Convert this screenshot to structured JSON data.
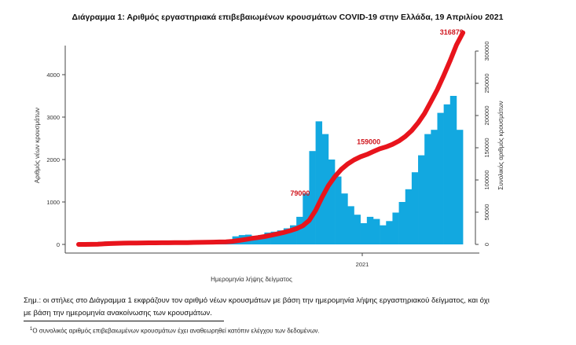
{
  "chart_data": {
    "type": "bar",
    "title": "Διάγραμμα 1: Αριθμός εργαστηριακά επιβεβαιωμένων κρουσμάτων COVID-19 στην Ελλάδα, 19 Απριλίου 2021",
    "xlabel": "Ημερομηνία λήψης δείγματος",
    "ylabel": "Αριθμός νέων κρουσμάτων",
    "y2label": "Συνολικός αριθμός κρουσμάτων",
    "ylim": [
      0,
      4500
    ],
    "y2lim": [
      0,
      320000
    ],
    "yticks": [
      "0",
      "1000",
      "2000",
      "3000",
      "4000"
    ],
    "y2ticks": [
      "0",
      "50000",
      "100000",
      "150000",
      "200000",
      "250000",
      "300000"
    ],
    "xtick_labels": [
      {
        "date": "2021-01-01",
        "label": "2021"
      }
    ],
    "grid": false,
    "colors": {
      "bars": "#12a8e0",
      "cumulative_line": "#e8141c",
      "annotation": "#d0161e"
    },
    "series": [
      {
        "kind": "bar",
        "x": [
          "2020-02-26",
          "2020-03-04",
          "2020-03-11",
          "2020-03-18",
          "2020-03-25",
          "2020-04-01",
          "2020-04-08",
          "2020-04-15",
          "2020-04-22",
          "2020-04-29",
          "2020-05-06",
          "2020-05-13",
          "2020-05-20",
          "2020-05-27",
          "2020-06-03",
          "2020-06-10",
          "2020-06-17",
          "2020-06-24",
          "2020-07-01",
          "2020-07-08",
          "2020-07-15",
          "2020-07-22",
          "2020-07-29",
          "2020-08-05",
          "2020-08-12",
          "2020-08-19",
          "2020-08-26",
          "2020-09-02",
          "2020-09-09",
          "2020-09-16",
          "2020-09-23",
          "2020-09-30",
          "2020-10-07",
          "2020-10-14",
          "2020-10-21",
          "2020-10-28",
          "2020-11-04",
          "2020-11-11",
          "2020-11-18",
          "2020-11-25",
          "2020-12-02",
          "2020-12-09",
          "2020-12-16",
          "2020-12-23",
          "2020-12-30",
          "2021-01-06",
          "2021-01-13",
          "2021-01-20",
          "2021-01-27",
          "2021-02-03",
          "2021-02-10",
          "2021-02-17",
          "2021-02-24",
          "2021-03-03",
          "2021-03-10",
          "2021-03-17",
          "2021-03-24",
          "2021-03-31",
          "2021-04-07",
          "2021-04-14"
        ],
        "values": [
          5,
          15,
          40,
          60,
          70,
          50,
          40,
          25,
          15,
          10,
          10,
          10,
          10,
          10,
          10,
          12,
          15,
          20,
          20,
          25,
          30,
          35,
          40,
          100,
          190,
          220,
          230,
          200,
          220,
          280,
          300,
          330,
          380,
          450,
          650,
          1200,
          2200,
          2900,
          2600,
          2000,
          1600,
          1200,
          900,
          700,
          500,
          650,
          600,
          450,
          550,
          750,
          1000,
          1300,
          1700,
          2100,
          2600,
          2700,
          3100,
          3300,
          3500,
          2700
        ]
      },
      {
        "kind": "line",
        "cumulative": true
      }
    ],
    "annotations": [
      {
        "date": "2020-11-10",
        "value": 79000,
        "text": "79000"
      },
      {
        "date": "2021-01-26",
        "value": 159000,
        "text": "159000"
      },
      {
        "date": "2021-04-19",
        "value": 316879,
        "text": "316879"
      }
    ]
  },
  "notes": {
    "line1": "Σημ.: οι στήλες στο Διάγραμμα 1 εκφράζουν τον αριθμό νέων κρουσμάτων με βάση την ημερομηνία λήψης εργαστηριακού δείγματος, και όχι",
    "line2": "με βάση την ημερομηνία ανακοίνωσης των κρουσμάτων.",
    "footnote_mark": "1",
    "footnote": "Ο συνολικός αριθμός επιβεβαιωμένων κρουσμάτων έχει αναθεωρηθεί κατόπιν ελέγχου των δεδομένων."
  }
}
